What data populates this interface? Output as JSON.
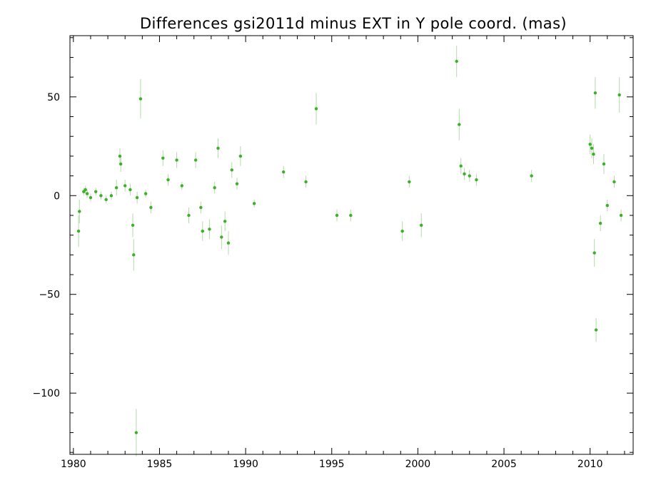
{
  "chart_data": {
    "type": "scatter",
    "title": "Differences gsi2011d minus EXT in Y pole coord. (mas)",
    "xlabel": "",
    "ylabel": "",
    "xlim": [
      1979.8,
      2012.5
    ],
    "ylim": [
      -131,
      81
    ],
    "xticks": [
      1980,
      1985,
      1990,
      1995,
      2000,
      2005,
      2010
    ],
    "yticks": [
      -100,
      -50,
      0,
      50
    ],
    "ytick_labels": [
      "−100",
      "−50",
      "0",
      "50"
    ],
    "grid": false,
    "legend": "none",
    "colors": {
      "points": "#3cb029",
      "error_bars": "#b5d9ac",
      "frame": "#000000"
    },
    "series": [
      {
        "points": [
          {
            "x": 1980.3,
            "y": -18,
            "err": 8
          },
          {
            "x": 1980.35,
            "y": -8,
            "err": 6
          },
          {
            "x": 1980.6,
            "y": 2,
            "err": 2
          },
          {
            "x": 1980.7,
            "y": 3,
            "err": 2
          },
          {
            "x": 1980.8,
            "y": 1,
            "err": 2
          },
          {
            "x": 1981.0,
            "y": -1,
            "err": 2
          },
          {
            "x": 1981.3,
            "y": 2,
            "err": 2
          },
          {
            "x": 1981.6,
            "y": 0,
            "err": 2
          },
          {
            "x": 1981.9,
            "y": -2,
            "err": 2
          },
          {
            "x": 1982.2,
            "y": 0,
            "err": 2
          },
          {
            "x": 1982.5,
            "y": 4,
            "err": 4
          },
          {
            "x": 1982.7,
            "y": 20,
            "err": 4
          },
          {
            "x": 1982.75,
            "y": 16,
            "err": 4
          },
          {
            "x": 1983.0,
            "y": 5,
            "err": 3
          },
          {
            "x": 1983.3,
            "y": 3,
            "err": 3
          },
          {
            "x": 1983.45,
            "y": -15,
            "err": 6
          },
          {
            "x": 1983.5,
            "y": -30,
            "err": 8
          },
          {
            "x": 1983.65,
            "y": -120,
            "err": 12
          },
          {
            "x": 1983.7,
            "y": -1,
            "err": 3
          },
          {
            "x": 1983.9,
            "y": 49,
            "err": 10
          },
          {
            "x": 1984.2,
            "y": 1,
            "err": 2
          },
          {
            "x": 1984.5,
            "y": -6,
            "err": 3
          },
          {
            "x": 1985.2,
            "y": 19,
            "err": 4
          },
          {
            "x": 1985.5,
            "y": 8,
            "err": 3
          },
          {
            "x": 1986.0,
            "y": 18,
            "err": 4
          },
          {
            "x": 1986.3,
            "y": 5,
            "err": 2
          },
          {
            "x": 1986.7,
            "y": -10,
            "err": 4
          },
          {
            "x": 1987.1,
            "y": 18,
            "err": 4
          },
          {
            "x": 1987.4,
            "y": -6,
            "err": 3
          },
          {
            "x": 1987.5,
            "y": -18,
            "err": 5
          },
          {
            "x": 1987.9,
            "y": -17,
            "err": 5
          },
          {
            "x": 1988.2,
            "y": 4,
            "err": 3
          },
          {
            "x": 1988.4,
            "y": 24,
            "err": 5
          },
          {
            "x": 1988.6,
            "y": -21,
            "err": 6
          },
          {
            "x": 1988.8,
            "y": -13,
            "err": 5
          },
          {
            "x": 1989.0,
            "y": -24,
            "err": 6
          },
          {
            "x": 1989.2,
            "y": 13,
            "err": 4
          },
          {
            "x": 1989.5,
            "y": 6,
            "err": 3
          },
          {
            "x": 1989.7,
            "y": 20,
            "err": 5
          },
          {
            "x": 1990.5,
            "y": -4,
            "err": 2
          },
          {
            "x": 1992.2,
            "y": 12,
            "err": 3
          },
          {
            "x": 1993.5,
            "y": 7,
            "err": 3
          },
          {
            "x": 1994.1,
            "y": 44,
            "err": 8
          },
          {
            "x": 1995.3,
            "y": -10,
            "err": 3
          },
          {
            "x": 1996.1,
            "y": -10,
            "err": 3
          },
          {
            "x": 1999.1,
            "y": -18,
            "err": 5
          },
          {
            "x": 1999.5,
            "y": 7,
            "err": 3
          },
          {
            "x": 2000.2,
            "y": -15,
            "err": 6
          },
          {
            "x": 2002.25,
            "y": 68,
            "err": 8
          },
          {
            "x": 2002.4,
            "y": 36,
            "err": 8
          },
          {
            "x": 2002.5,
            "y": 15,
            "err": 4
          },
          {
            "x": 2002.7,
            "y": 11,
            "err": 3
          },
          {
            "x": 2003.0,
            "y": 10,
            "err": 3
          },
          {
            "x": 2003.4,
            "y": 8,
            "err": 3
          },
          {
            "x": 2006.6,
            "y": 10,
            "err": 3
          },
          {
            "x": 2010.0,
            "y": 26,
            "err": 5
          },
          {
            "x": 2010.1,
            "y": 24,
            "err": 5
          },
          {
            "x": 2010.2,
            "y": 21,
            "err": 5
          },
          {
            "x": 2010.25,
            "y": -29,
            "err": 7
          },
          {
            "x": 2010.3,
            "y": 52,
            "err": 8
          },
          {
            "x": 2010.35,
            "y": -68,
            "err": 6
          },
          {
            "x": 2010.6,
            "y": -14,
            "err": 4
          },
          {
            "x": 2010.8,
            "y": 16,
            "err": 5
          },
          {
            "x": 2011.0,
            "y": -5,
            "err": 3
          },
          {
            "x": 2011.4,
            "y": 7,
            "err": 3
          },
          {
            "x": 2011.7,
            "y": 51,
            "err": 9
          },
          {
            "x": 2011.8,
            "y": -10,
            "err": 3
          }
        ]
      }
    ]
  }
}
